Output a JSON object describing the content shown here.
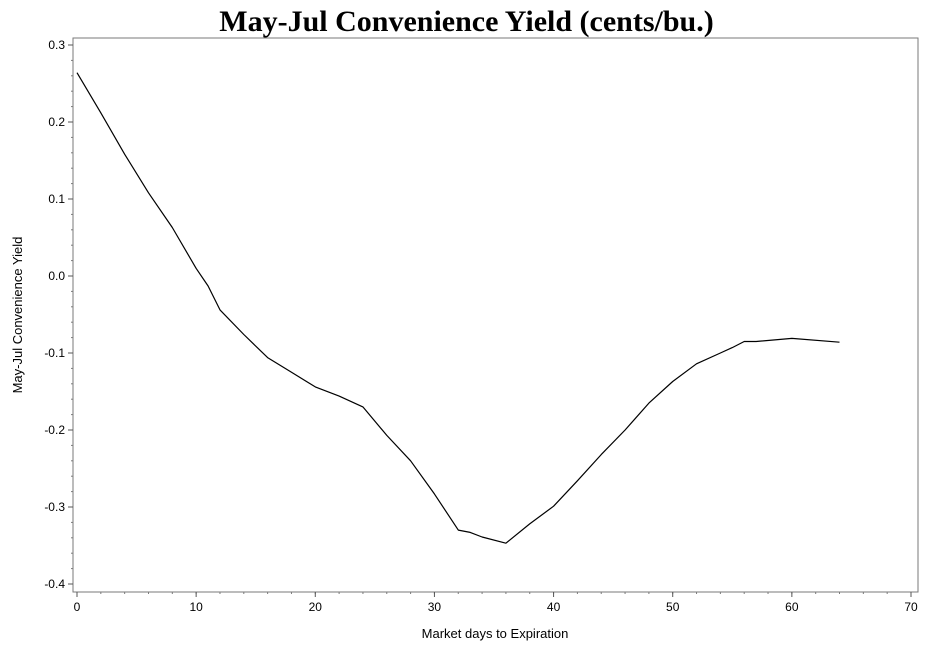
{
  "chart_data": {
    "type": "line",
    "title": "May-Jul Convenience Yield (cents/bu.)",
    "xlabel": "Market days to Expiration",
    "ylabel": "May-Jul Convenience Yield",
    "xlim": [
      0,
      70
    ],
    "ylim": [
      -0.4,
      0.3
    ],
    "x_ticks": [
      0,
      10,
      20,
      30,
      40,
      50,
      60,
      70
    ],
    "x_tick_labels": [
      "0",
      "10",
      "20",
      "30",
      "40",
      "50",
      "60",
      "70"
    ],
    "y_ticks": [
      0.3,
      0.2,
      0.1,
      0.0,
      -0.1,
      -0.2,
      -0.3,
      -0.4
    ],
    "y_tick_labels": [
      "0.3",
      "0.2",
      "0.1",
      "0.0",
      "-0.1",
      "-0.2",
      "-0.3",
      "-0.4"
    ],
    "grid": false,
    "series": [
      {
        "x": [
          0,
          2,
          4,
          6,
          8,
          10,
          11,
          12,
          14,
          16,
          18,
          20,
          22,
          24,
          26,
          28,
          30,
          32,
          33,
          34,
          36,
          38,
          40,
          42,
          44,
          46,
          48,
          50,
          52,
          54,
          55,
          56,
          57,
          60,
          64
        ],
        "values": [
          0.264,
          0.212,
          0.158,
          0.108,
          0.063,
          0.01,
          -0.013,
          -0.044,
          -0.076,
          -0.106,
          -0.125,
          -0.144,
          -0.156,
          -0.17,
          -0.207,
          -0.24,
          -0.283,
          -0.33,
          -0.333,
          -0.339,
          -0.347,
          -0.322,
          -0.299,
          -0.266,
          -0.232,
          -0.2,
          -0.165,
          -0.137,
          -0.114,
          -0.1,
          -0.093,
          -0.085,
          -0.085,
          -0.081,
          -0.086
        ]
      }
    ]
  }
}
